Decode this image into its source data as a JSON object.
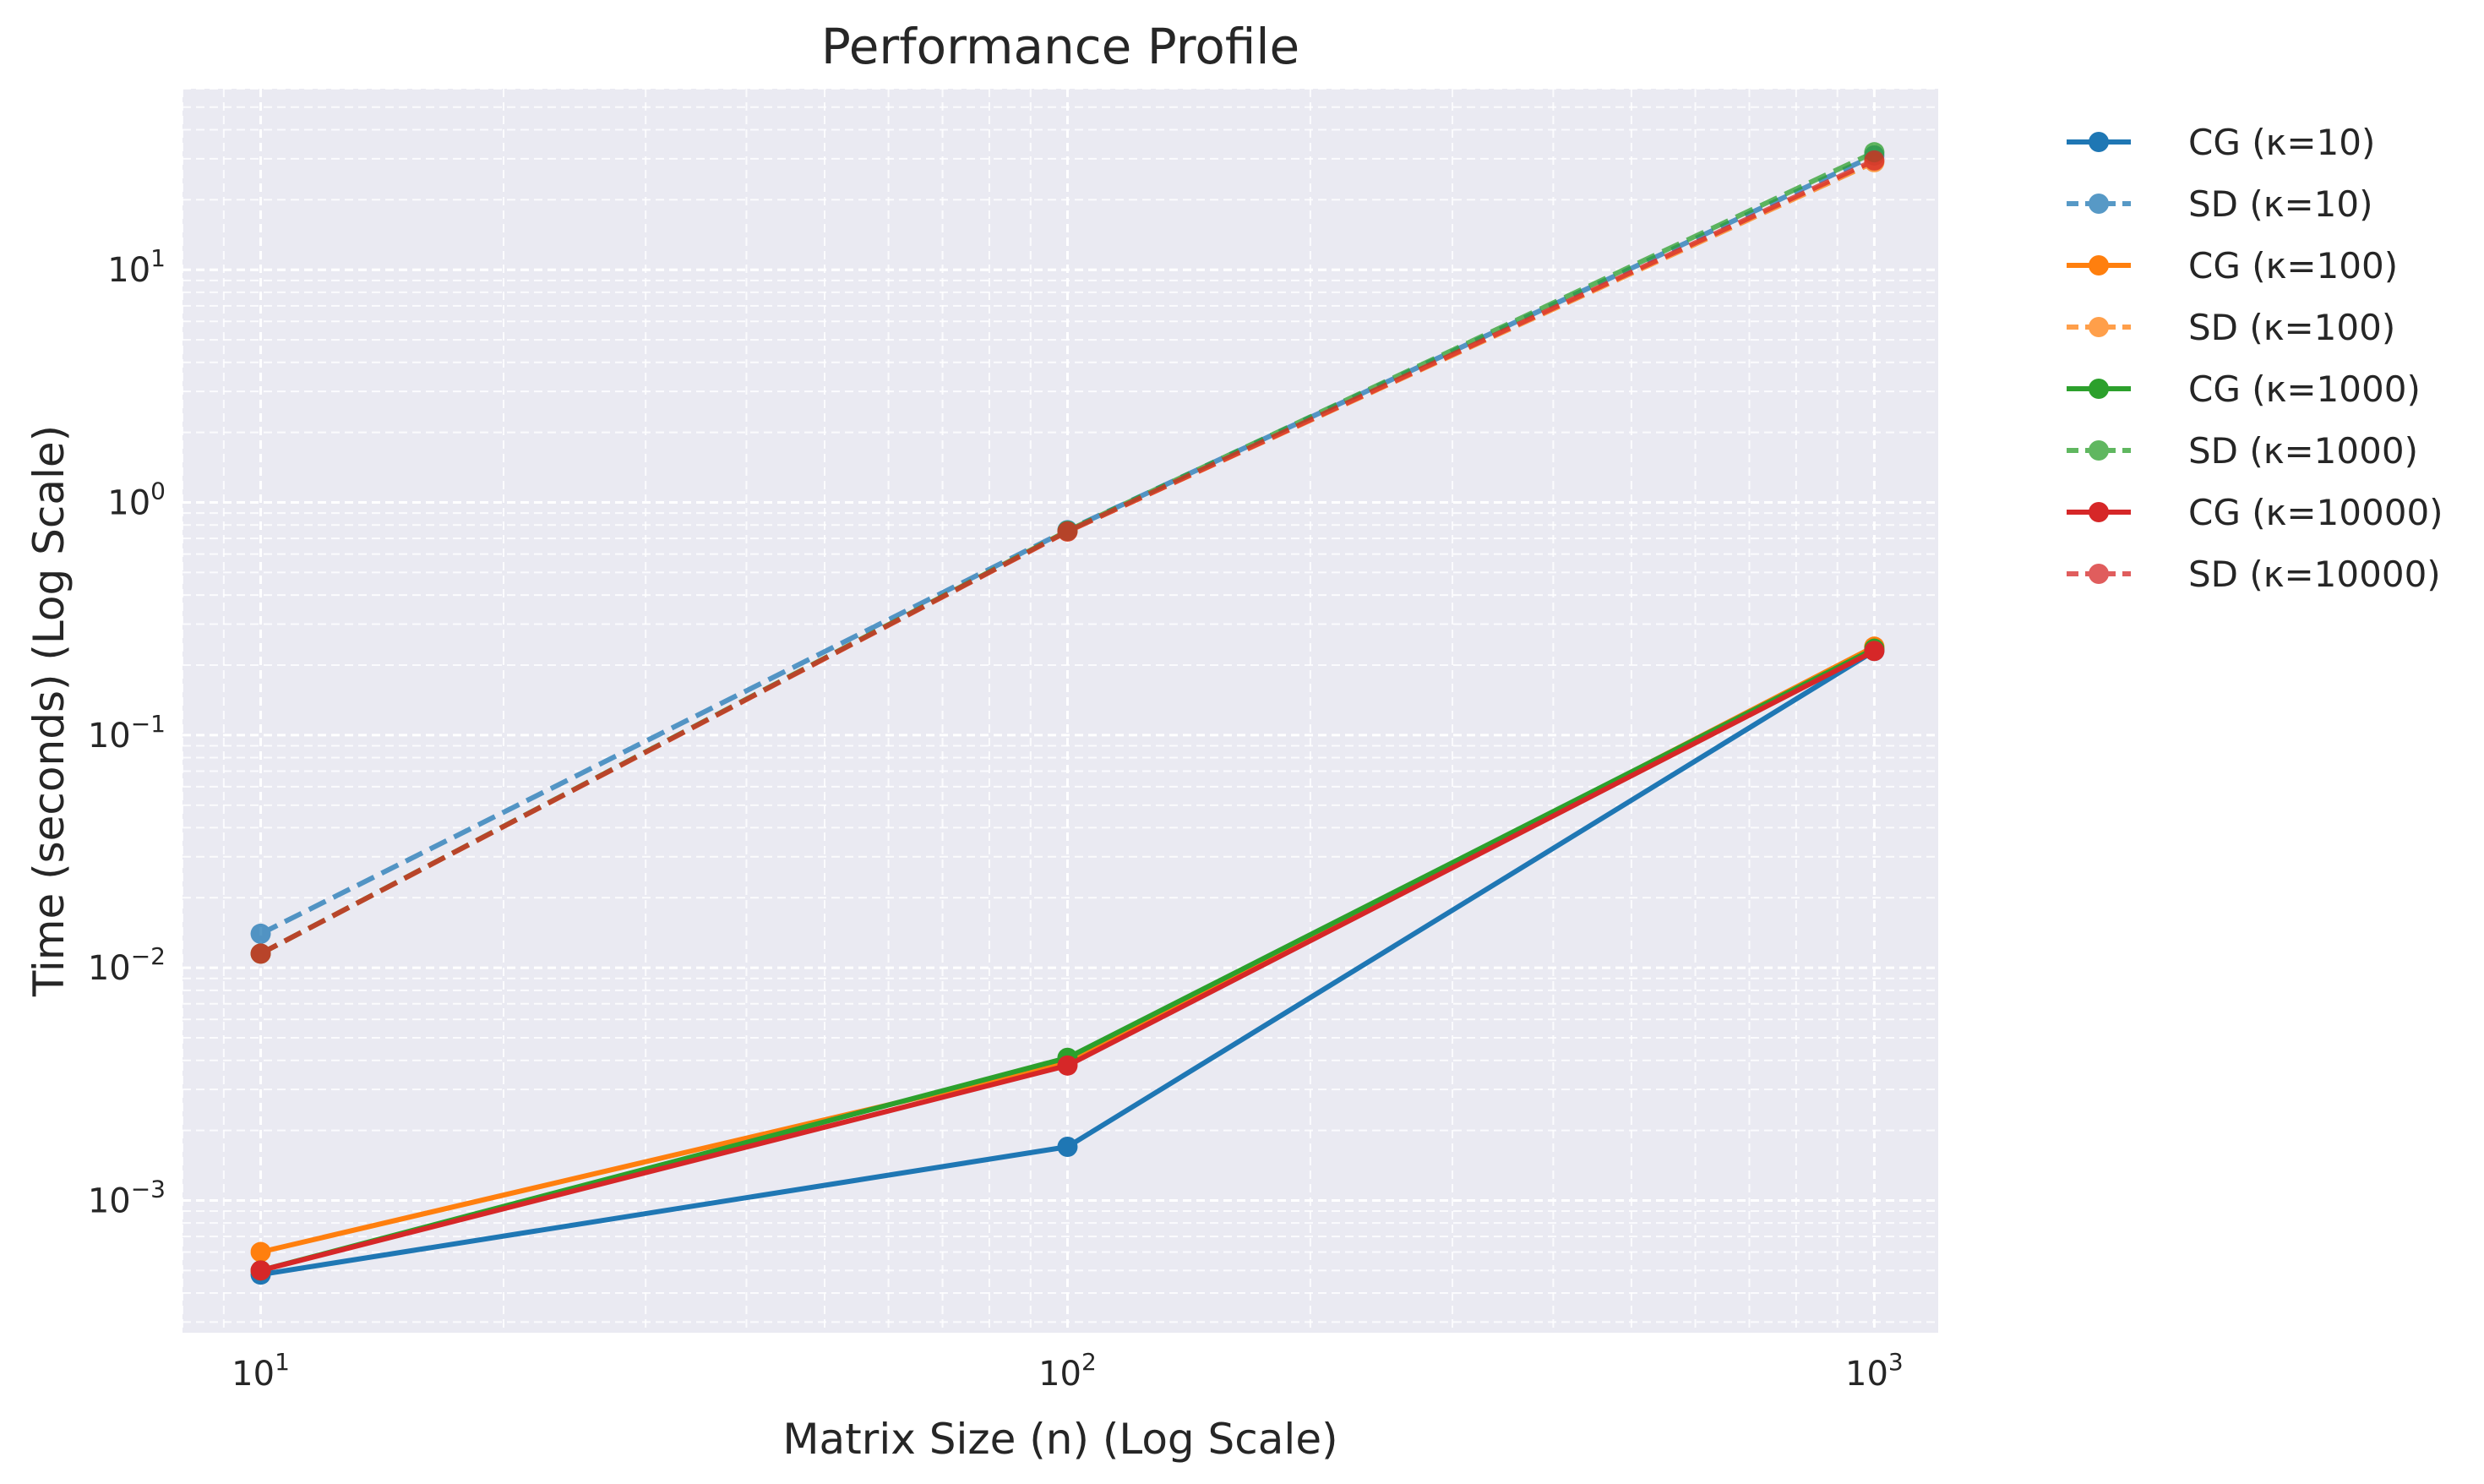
{
  "chart_data": {
    "type": "line",
    "title": "Performance Profile",
    "xlabel": "Matrix Size (n) (Log Scale)",
    "ylabel": "Time (seconds) (Log Scale)",
    "xscale": "log",
    "yscale": "log",
    "xlim": [
      8,
      1200
    ],
    "ylim": [
      0.00027,
      60
    ],
    "x_ticks": [
      {
        "value": 10,
        "base": "10",
        "exp": "1"
      },
      {
        "value": 100,
        "base": "10",
        "exp": "2"
      },
      {
        "value": 1000,
        "base": "10",
        "exp": "3"
      }
    ],
    "y_ticks": [
      {
        "value": 0.001,
        "base": "10",
        "exp": "−3"
      },
      {
        "value": 0.01,
        "base": "10",
        "exp": "−2"
      },
      {
        "value": 0.1,
        "base": "10",
        "exp": "−1"
      },
      {
        "value": 1,
        "base": "10",
        "exp": "0"
      },
      {
        "value": 10,
        "base": "10",
        "exp": "1"
      }
    ],
    "grid": true,
    "legend_position": "outside-right",
    "x": [
      10,
      100,
      1000
    ],
    "series": [
      {
        "name": "CG (κ=10)",
        "values": [
          0.00048,
          0.0017,
          0.23
        ],
        "color": "#1f77b4",
        "dash": "solid"
      },
      {
        "name": "SD (κ=10)",
        "values": [
          0.014,
          0.76,
          31
        ],
        "color": "#1f77b4",
        "dash": "dashed"
      },
      {
        "name": "CG (κ=100)",
        "values": [
          0.0006,
          0.0039,
          0.24
        ],
        "color": "#ff7f0e",
        "dash": "solid"
      },
      {
        "name": "SD (κ=100)",
        "values": [
          0.0115,
          0.75,
          29
        ],
        "color": "#ff7f0e",
        "dash": "dashed"
      },
      {
        "name": "CG (κ=1000)",
        "values": [
          0.0005,
          0.0041,
          0.235
        ],
        "color": "#2ca02c",
        "dash": "solid"
      },
      {
        "name": "SD (κ=1000)",
        "values": [
          0.0115,
          0.755,
          32
        ],
        "color": "#2ca02c",
        "dash": "dashed"
      },
      {
        "name": "CG (κ=10000)",
        "values": [
          0.0005,
          0.0038,
          0.23
        ],
        "color": "#d62728",
        "dash": "solid"
      },
      {
        "name": "SD (κ=10000)",
        "values": [
          0.0115,
          0.75,
          29.5
        ],
        "color": "#d62728",
        "dash": "dashed"
      }
    ]
  }
}
